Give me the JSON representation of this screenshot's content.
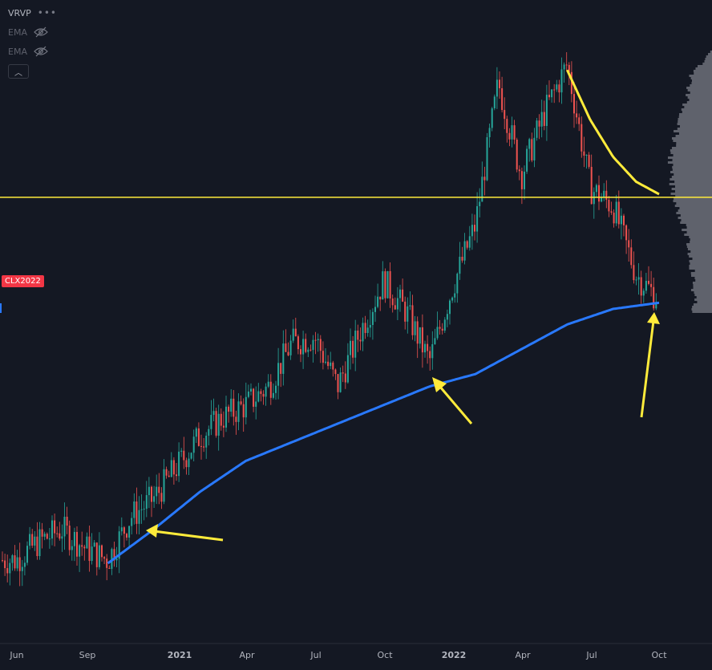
{
  "legend": {
    "indicator_main": "VRVP",
    "indicator_2": "EMA",
    "indicator_3": "EMA",
    "more_icon": "more-dots-icon",
    "hidden_icon": "eye-off-icon",
    "collapse_icon": "chevron-up-icon"
  },
  "symbol_tag": "CLX2022",
  "colors": {
    "background": "#141823",
    "up_candle": "#26a69a",
    "down_candle": "#ef5350",
    "ema_long": "#2979ff",
    "ema_short": "#ffeb3b",
    "horizontal_level": "#ffeb3b",
    "arrow": "#ffeb3b",
    "volume_profile": "#787b86",
    "axis_text": "#b2b5be"
  },
  "chart_data": {
    "type": "line",
    "title": "",
    "xlabel": "",
    "ylabel": "",
    "x_tick_labels": [
      "Jun",
      "Sep",
      "2021",
      "Apr",
      "Jul",
      "Oct",
      "2022",
      "Apr",
      "Jul",
      "Oct"
    ],
    "price_series": {
      "x": [
        "2020-06",
        "2020-07",
        "2020-08",
        "2020-09",
        "2020-10",
        "2020-11",
        "2020-12",
        "2021-01",
        "2021-02",
        "2021-03",
        "2021-04",
        "2021-05",
        "2021-06",
        "2021-07",
        "2021-08",
        "2021-09",
        "2021-10",
        "2021-11",
        "2021-12",
        "2022-01",
        "2022-02",
        "2022-03",
        "2022-04",
        "2022-05",
        "2022-06",
        "2022-07",
        "2022-08",
        "2022-09",
        "2022-10"
      ],
      "values": [
        38,
        41,
        43,
        40,
        38,
        45,
        48,
        53,
        58,
        61,
        63,
        66,
        73,
        74,
        66,
        75,
        83,
        78,
        70,
        82,
        92,
        115,
        100,
        110,
        118,
        98,
        95,
        84,
        80
      ]
    },
    "ema_long": {
      "x": [
        "2020-10",
        "2020-12",
        "2021-02",
        "2021-04",
        "2021-06",
        "2021-08",
        "2021-10",
        "2021-12",
        "2022-02",
        "2022-04",
        "2022-06",
        "2022-08",
        "2022-10"
      ],
      "values": [
        37.5,
        43,
        49,
        54,
        57,
        60,
        63,
        66,
        68,
        72,
        76,
        78.5,
        79.5
      ]
    },
    "ema_short": {
      "x": [
        "2022-06",
        "2022-07",
        "2022-08",
        "2022-09",
        "2022-10"
      ],
      "values": [
        117,
        109,
        103,
        99,
        97
      ]
    },
    "horizontal_level": 96.5,
    "ylim": [
      30,
      127
    ]
  }
}
